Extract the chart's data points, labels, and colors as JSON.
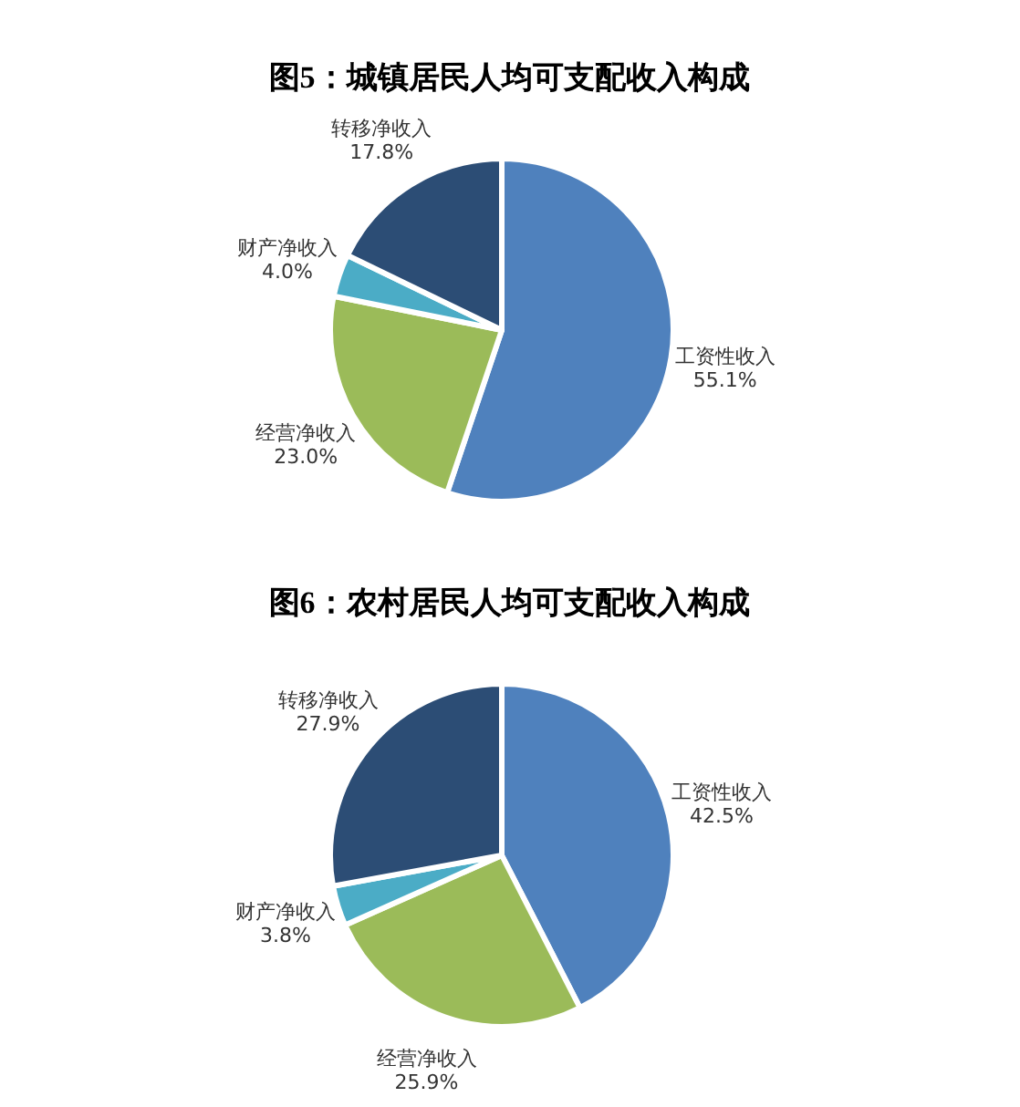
{
  "chart_data": [
    {
      "type": "pie",
      "title": "图5：城镇居民人均可支配收入构成",
      "categories": [
        "工资性收入",
        "经营净收入",
        "财产净收入",
        "转移净收入"
      ],
      "values": [
        55.1,
        23.0,
        4.0,
        17.8
      ],
      "value_labels": [
        "55.1%",
        "23.0%",
        "4.0%",
        "17.8%"
      ],
      "colors": [
        "#4f81bd",
        "#9bbb59",
        "#4bacc6",
        "#2c4d75"
      ]
    },
    {
      "type": "pie",
      "title": "图6：农村居民人均可支配收入构成",
      "categories": [
        "工资性收入",
        "经营净收入",
        "财产净收入",
        "转移净收入"
      ],
      "values": [
        42.5,
        25.9,
        3.8,
        27.9
      ],
      "value_labels": [
        "42.5%",
        "25.9%",
        "3.8%",
        "27.9%"
      ],
      "colors": [
        "#4f81bd",
        "#9bbb59",
        "#4bacc6",
        "#2c4d75"
      ]
    }
  ]
}
